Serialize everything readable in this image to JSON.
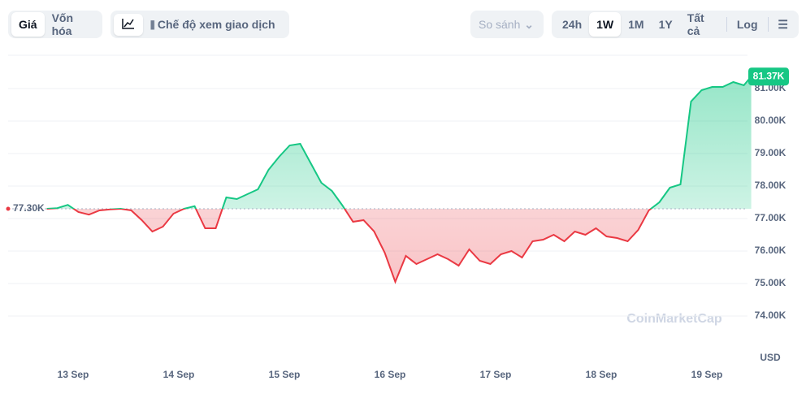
{
  "toolbar": {
    "left": [
      "Giá",
      "Vốn hóa"
    ],
    "view_mode": "Chế độ xem giao dịch",
    "compare": "So sánh",
    "ranges": [
      "24h",
      "1W",
      "1M",
      "1Y",
      "Tất cả"
    ],
    "log": "Log"
  },
  "chart_data": {
    "type": "line",
    "x": [
      12.75,
      12.85,
      12.95,
      13.05,
      13.15,
      13.25,
      13.35,
      13.45,
      13.55,
      13.65,
      13.75,
      13.85,
      13.95,
      14.05,
      14.15,
      14.25,
      14.35,
      14.45,
      14.55,
      14.65,
      14.75,
      14.85,
      14.95,
      15.05,
      15.15,
      15.25,
      15.35,
      15.45,
      15.55,
      15.65,
      15.75,
      15.85,
      15.95,
      16.05,
      16.15,
      16.25,
      16.35,
      16.45,
      16.55,
      16.65,
      16.75,
      16.85,
      16.95,
      17.05,
      17.15,
      17.25,
      17.35,
      17.45,
      17.55,
      17.65,
      17.75,
      17.85,
      17.95,
      18.05,
      18.15,
      18.25,
      18.35,
      18.45,
      18.55,
      18.65,
      18.75,
      18.85,
      18.95,
      19.05,
      19.15,
      19.25,
      19.35,
      19.42
    ],
    "series": [
      {
        "name": "Giá",
        "color": "#16c784",
        "color_down": "#ea3943",
        "values": [
          77300,
          77320,
          77420,
          77200,
          77120,
          77250,
          77280,
          77300,
          77250,
          76950,
          76600,
          76750,
          77150,
          77300,
          77380,
          76700,
          76700,
          77650,
          77600,
          77750,
          77900,
          78500,
          78900,
          79250,
          79300,
          78700,
          78100,
          77850,
          77400,
          76900,
          76950,
          76600,
          75950,
          75050,
          75850,
          75600,
          75750,
          75900,
          75750,
          75550,
          76050,
          75700,
          75600,
          75900,
          76000,
          75800,
          76300,
          76350,
          76500,
          76300,
          76600,
          76500,
          76700,
          76450,
          76400,
          76300,
          76650,
          77250,
          77500,
          77950,
          78050,
          80600,
          80950,
          81050,
          81050,
          81200,
          81100,
          81370
        ]
      }
    ],
    "baseline": {
      "value": 77300,
      "label": "77.30K"
    },
    "current_price": {
      "value": 81370,
      "label": "81.37K"
    },
    "xlim": [
      12.6,
      19.6
    ],
    "xticks": [
      {
        "value": 13,
        "label": "13 Sep"
      },
      {
        "value": 14,
        "label": "14 Sep"
      },
      {
        "value": 15,
        "label": "15 Sep"
      },
      {
        "value": 16,
        "label": "16 Sep"
      },
      {
        "value": 17,
        "label": "17 Sep"
      },
      {
        "value": 18,
        "label": "18 Sep"
      },
      {
        "value": 19,
        "label": "19 Sep"
      }
    ],
    "ylim": [
      72500,
      82000
    ],
    "yticks": [
      {
        "value": 74000,
        "label": "74.00K"
      },
      {
        "value": 75000,
        "label": "75.00K"
      },
      {
        "value": 76000,
        "label": "76.00K"
      },
      {
        "value": 77000,
        "label": "77.00K"
      },
      {
        "value": 78000,
        "label": "78.00K"
      },
      {
        "value": 79000,
        "label": "79.00K"
      },
      {
        "value": 80000,
        "label": "80.00K"
      },
      {
        "value": 81000,
        "label": "81.00K"
      }
    ],
    "y_axis_label": "USD",
    "watermark": "CoinMarketCap",
    "grid": true
  }
}
